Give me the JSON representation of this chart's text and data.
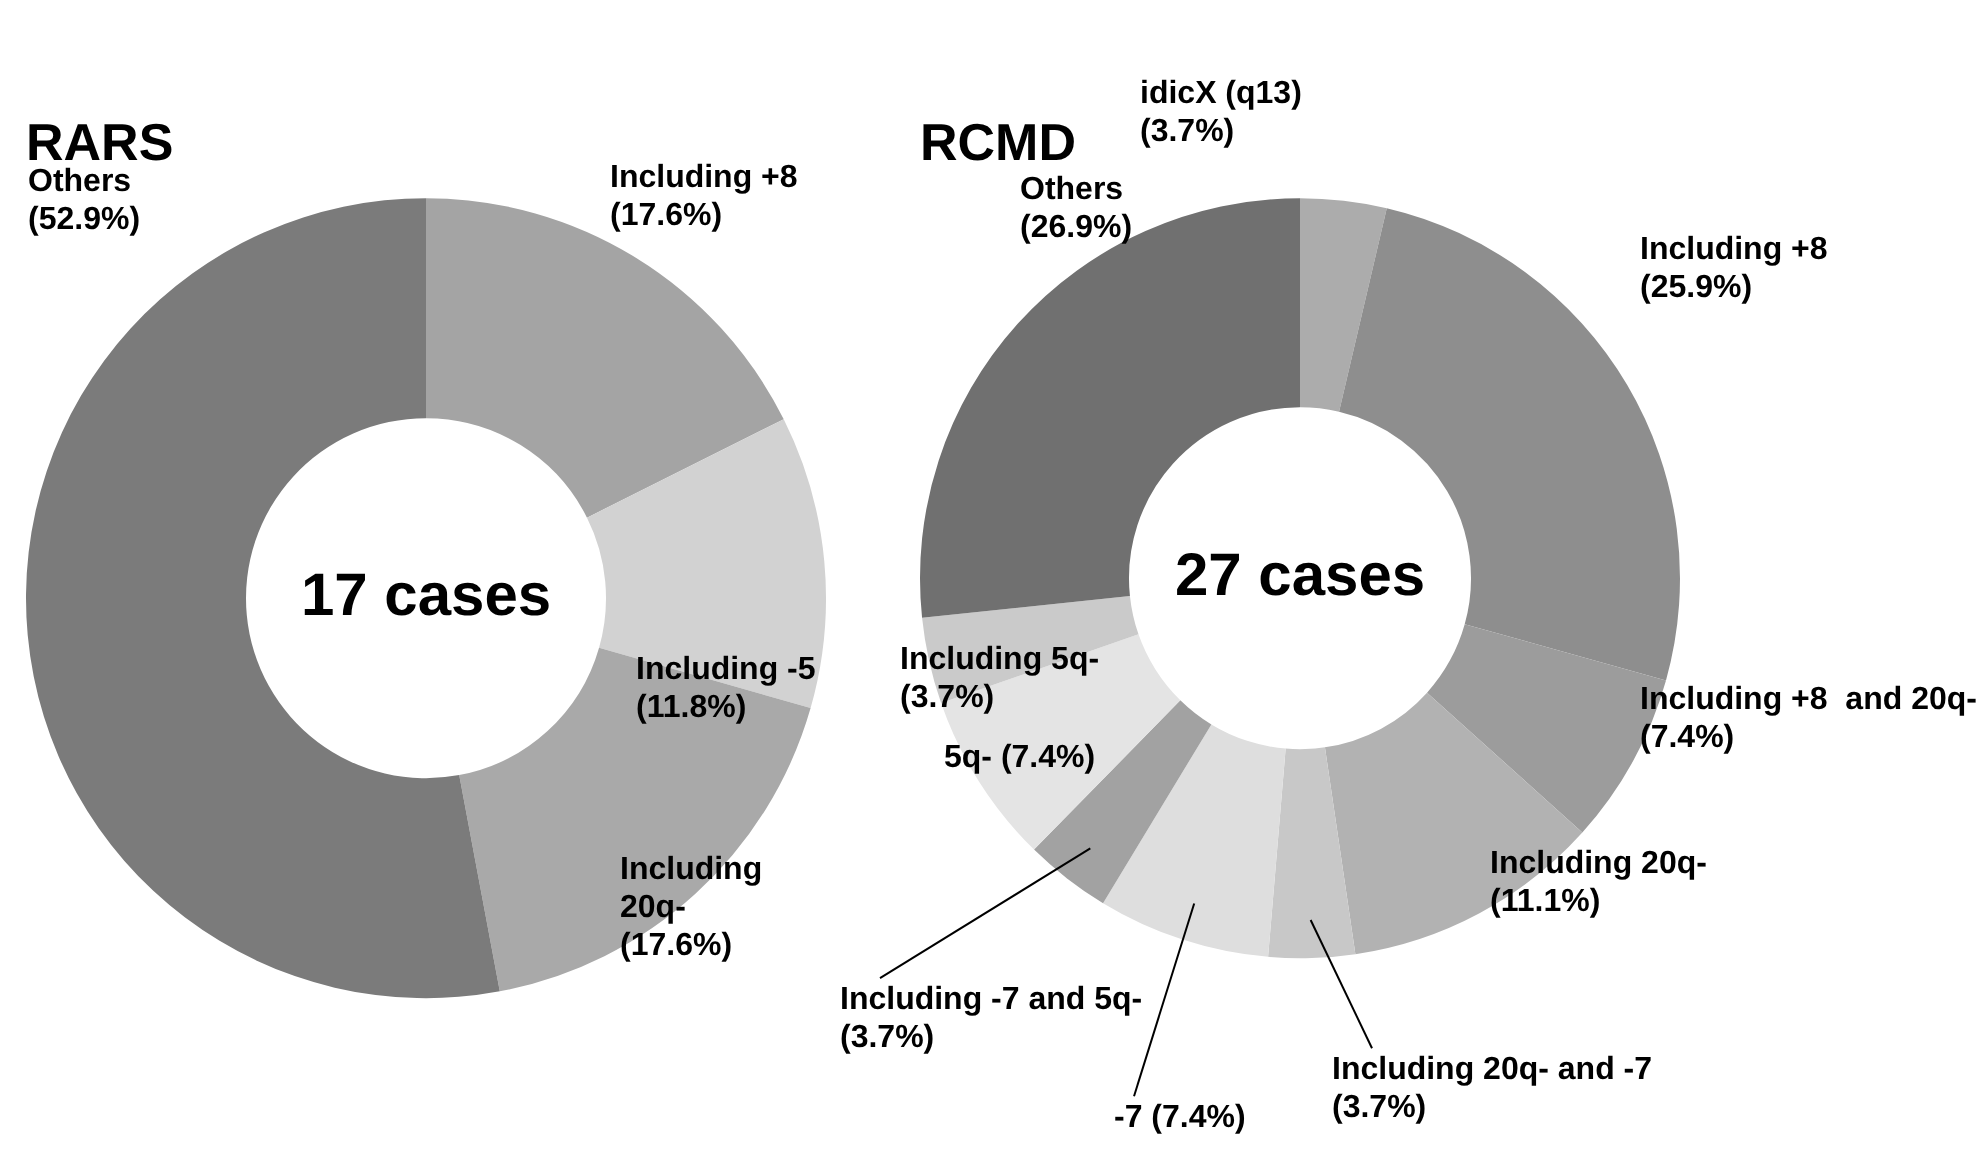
{
  "chart_data": [
    {
      "type": "donut",
      "title": "RARS",
      "categories": [
        "Including +8",
        "Including -5",
        "Including 20q-",
        "Others"
      ],
      "values": [
        17.6,
        11.8,
        17.6,
        52.9
      ],
      "colors": [
        "#a4a4a4",
        "#d2d2d2",
        "#a9a9a9",
        "#7b7b7b"
      ],
      "value_labels": [
        "(17.6%)",
        "(11.8%)",
        "(17.6%)",
        "(52.9%)"
      ],
      "annotations": [
        "17 cases"
      ],
      "legend": false
    },
    {
      "type": "donut",
      "title": "RCMD",
      "categories": [
        "idicX (q13)",
        "Including +8",
        "Including +8  and 20q-",
        "Including 20q-",
        "Including 20q- and -7",
        "-7",
        "Including -7 and 5q-",
        "5q-",
        "Including 5q-",
        "Others"
      ],
      "values": [
        3.7,
        25.9,
        7.4,
        11.1,
        3.7,
        7.4,
        3.7,
        7.4,
        3.7,
        26.9
      ],
      "colors": [
        "#acacac",
        "#8e8e8e",
        "#9c9c9c",
        "#b2b2b2",
        "#c8c8c8",
        "#dedede",
        "#a2a2a2",
        "#e4e4e4",
        "#cacaca",
        "#707070"
      ],
      "value_labels": [
        "(3.7%)",
        "(25.9%)",
        "(7.4%)",
        "(11.1%)",
        "(3.7%)",
        "(7.4%)",
        "(3.7%)",
        "(7.4%)",
        "(3.7%)",
        "(26.9%)"
      ],
      "annotations": [
        "27 cases"
      ],
      "legend": false
    }
  ]
}
